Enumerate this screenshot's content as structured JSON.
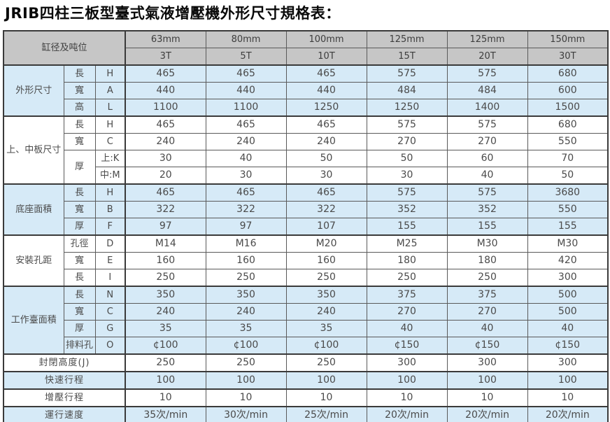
{
  "title": "JRIB四柱三板型臺式氣液增壓機外形尺寸規格表：",
  "colors": {
    "header_bg": "#c6c6c6",
    "row_blue": "#d6eaf7",
    "row_white": "#ffffff",
    "border_thin": "#5a5a5a",
    "border_thick": "#3a3a3a",
    "text": "#4a4a4a",
    "title_text": "#0a0a0a"
  },
  "table": {
    "corner_label": "缸径及吨位",
    "columns": [
      {
        "bore": "63mm",
        "tonnage": "3T"
      },
      {
        "bore": "80mm",
        "tonnage": "5T"
      },
      {
        "bore": "100mm",
        "tonnage": "10T"
      },
      {
        "bore": "125mm",
        "tonnage": "15T"
      },
      {
        "bore": "125mm",
        "tonnage": "20T"
      },
      {
        "bore": "150mm",
        "tonnage": "30T"
      }
    ],
    "groups": [
      {
        "label": "外形尺寸",
        "tint": "blue",
        "rows": [
          {
            "dim": "長",
            "code": "H",
            "values": [
              "465",
              "465",
              "465",
              "575",
              "575",
              "680"
            ]
          },
          {
            "dim": "寬",
            "code": "A",
            "values": [
              "440",
              "440",
              "440",
              "484",
              "484",
              "600"
            ]
          },
          {
            "dim": "高",
            "code": "L",
            "values": [
              "1100",
              "1100",
              "1250",
              "1250",
              "1400",
              "1500"
            ]
          }
        ]
      },
      {
        "label": "上、中板尺寸",
        "tint": "white",
        "rows": [
          {
            "dim": "長",
            "code": "H",
            "values": [
              "465",
              "465",
              "465",
              "575",
              "575",
              "680"
            ]
          },
          {
            "dim": "寬",
            "code": "C",
            "values": [
              "240",
              "240",
              "240",
              "270",
              "270",
              "550"
            ]
          },
          {
            "dim": "厚",
            "dimspan": 2,
            "code": "上:K",
            "values": [
              "30",
              "40",
              "50",
              "50",
              "60",
              "70"
            ]
          },
          {
            "dim": null,
            "code": "中:M",
            "values": [
              "20",
              "30",
              "30",
              "30",
              "40",
              "50"
            ]
          }
        ]
      },
      {
        "label": "底座面積",
        "tint": "blue",
        "rows": [
          {
            "dim": "長",
            "code": "H",
            "values": [
              "465",
              "465",
              "465",
              "575",
              "575",
              "3680"
            ]
          },
          {
            "dim": "寬",
            "code": "B",
            "values": [
              "322",
              "322",
              "322",
              "352",
              "352",
              "550"
            ]
          },
          {
            "dim": "厚",
            "code": "F",
            "values": [
              "97",
              "97",
              "107",
              "155",
              "155",
              "155"
            ]
          }
        ]
      },
      {
        "label": "安裝孔距",
        "tint": "white",
        "rows": [
          {
            "dim": "孔徑",
            "code": "D",
            "values": [
              "M14",
              "M16",
              "M20",
              "M25",
              "M30",
              "M30"
            ]
          },
          {
            "dim": "寬",
            "code": "E",
            "values": [
              "160",
              "160",
              "160",
              "180",
              "180",
              "420"
            ]
          },
          {
            "dim": "長",
            "code": "I",
            "values": [
              "250",
              "250",
              "250",
              "250",
              "250",
              "300"
            ]
          }
        ]
      },
      {
        "label": "工作臺面積",
        "tint": "blue",
        "rows": [
          {
            "dim": "長",
            "code": "N",
            "values": [
              "350",
              "350",
              "350",
              "375",
              "375",
              "500"
            ]
          },
          {
            "dim": "寬",
            "code": "C",
            "values": [
              "240",
              "240",
              "240",
              "270",
              "270",
              "500"
            ]
          },
          {
            "dim": "厚",
            "code": "G",
            "values": [
              "35",
              "35",
              "35",
              "40",
              "40",
              "40"
            ]
          },
          {
            "dim": "排料孔",
            "code": "O",
            "values": [
              "¢100",
              "¢100",
              "¢100",
              "¢150",
              "¢150",
              "¢150"
            ]
          }
        ]
      }
    ],
    "footer_rows": [
      {
        "label": "封閉高度(J)",
        "tint": "white",
        "values": [
          "250",
          "250",
          "250",
          "300",
          "300",
          "300"
        ]
      },
      {
        "label": "快速行程",
        "tint": "blue",
        "values": [
          "100",
          "100",
          "100",
          "100",
          "100",
          "100"
        ]
      },
      {
        "label": "增壓行程",
        "tint": "white",
        "values": [
          "10",
          "10",
          "10",
          "10",
          "10",
          "10"
        ]
      },
      {
        "label": "運行速度",
        "tint": "blue",
        "values": [
          "35次/min",
          "30次/min",
          "25次/min",
          "20次/min",
          "20次/min",
          "20次/min"
        ]
      }
    ]
  }
}
